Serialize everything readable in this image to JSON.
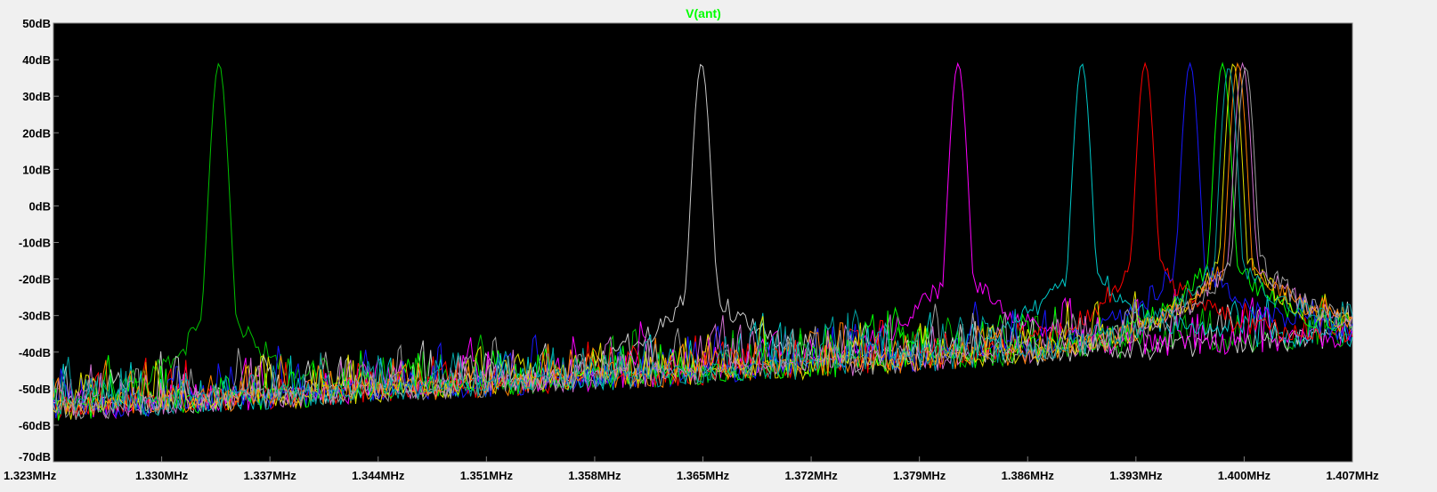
{
  "chart_data": {
    "type": "line",
    "title": "V(ant)",
    "title_color": "#00ff00",
    "xlabel": "",
    "ylabel": "",
    "x_unit": "MHz",
    "y_unit": "dB",
    "xlim": [
      1.323,
      1.407
    ],
    "ylim": [
      -70,
      50
    ],
    "x_ticks": [
      "1.323MHz",
      "1.330MHz",
      "1.337MHz",
      "1.344MHz",
      "1.351MHz",
      "1.358MHz",
      "1.365MHz",
      "1.372MHz",
      "1.379MHz",
      "1.386MHz",
      "1.393MHz",
      "1.400MHz",
      "1.407MHz"
    ],
    "x_tick_values": [
      1.323,
      1.33,
      1.337,
      1.344,
      1.351,
      1.358,
      1.365,
      1.372,
      1.379,
      1.386,
      1.393,
      1.4,
      1.407
    ],
    "y_ticks": [
      "50dB",
      "40dB",
      "30dB",
      "20dB",
      "10dB",
      "0dB",
      "-10dB",
      "-20dB",
      "-30dB",
      "-40dB",
      "-50dB",
      "-60dB",
      "-70dB"
    ],
    "y_tick_values": [
      50,
      40,
      30,
      20,
      10,
      0,
      -10,
      -20,
      -30,
      -40,
      -50,
      -60,
      -70
    ],
    "plot_background": "#000000",
    "grid": false,
    "legend": "none",
    "series": [
      {
        "name": "green",
        "color": "#00c000",
        "peak_x": 1.3337,
        "peak_db": 39
      },
      {
        "name": "white",
        "color": "#c8c8c8",
        "peak_x": 1.3649,
        "peak_db": 39
      },
      {
        "name": "magenta",
        "color": "#ff00ff",
        "peak_x": 1.3815,
        "peak_db": 39
      },
      {
        "name": "cyan",
        "color": "#00c8c8",
        "peak_x": 1.3895,
        "peak_db": 39
      },
      {
        "name": "red",
        "color": "#ff0000",
        "peak_x": 1.3936,
        "peak_db": 39
      },
      {
        "name": "blue",
        "color": "#1818ff",
        "peak_x": 1.3965,
        "peak_db": 39
      },
      {
        "name": "lime",
        "color": "#00ff00",
        "peak_x": 1.3986,
        "peak_db": 39
      },
      {
        "name": "yellow",
        "color": "#e0e000",
        "peak_x": 1.3993,
        "peak_db": 39
      },
      {
        "name": "violet",
        "color": "#d070d0",
        "peak_x": 1.3999,
        "peak_db": 39
      },
      {
        "name": "orange",
        "color": "#ff8000",
        "peak_x": 1.3996,
        "peak_db": 39
      },
      {
        "name": "gray",
        "color": "#a0a0a0",
        "peak_x": 1.4001,
        "peak_db": 38
      },
      {
        "name": "teal",
        "color": "#00a0a0",
        "peak_x": 1.399,
        "peak_db": 38
      }
    ]
  }
}
